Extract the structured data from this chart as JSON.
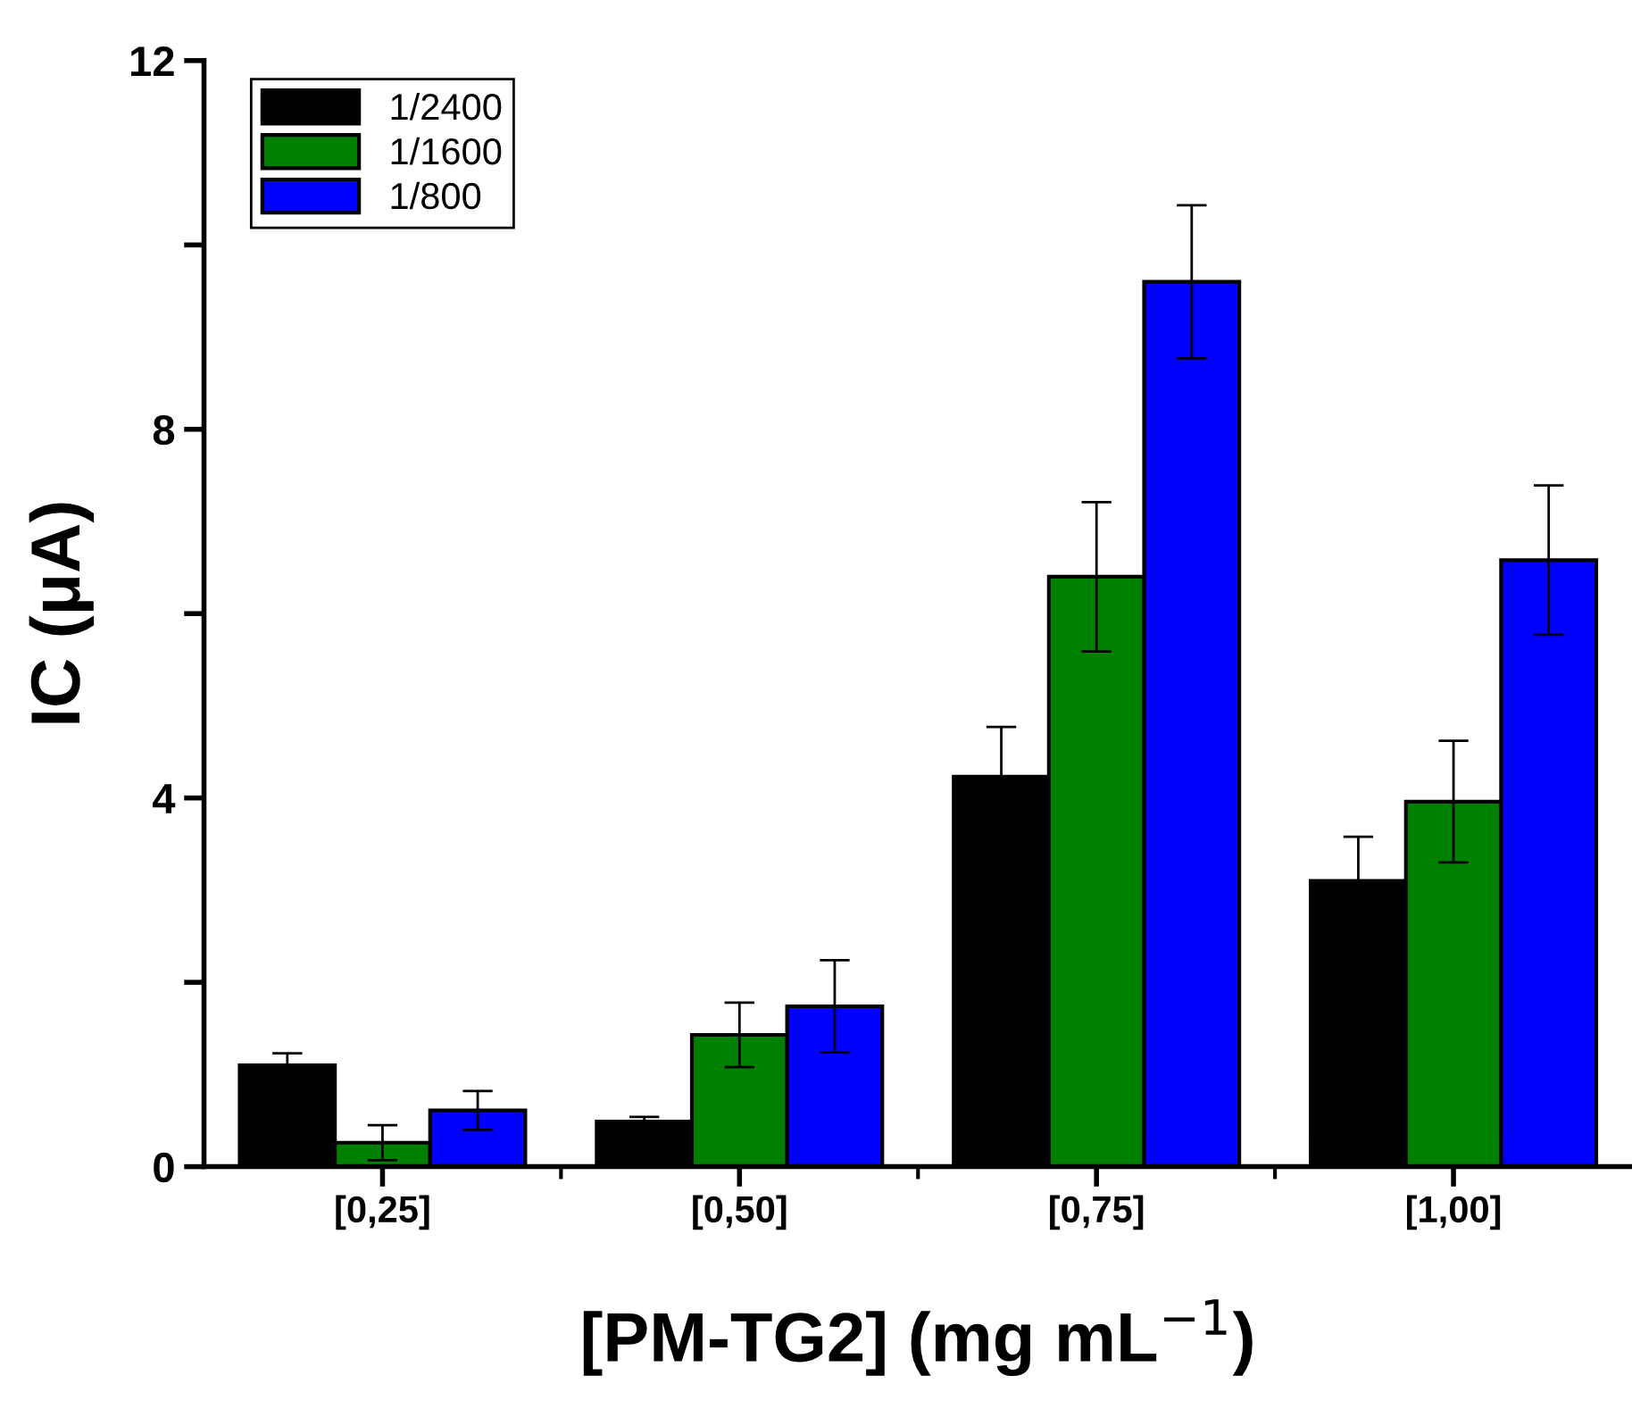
{
  "chart_data": {
    "type": "bar",
    "xlabel": "[PM-TG2] (mg mL$^{−1}$)",
    "ylabel": "IC (μA)",
    "categories": [
      "[0,25]",
      "[0,50]",
      "[0,75]",
      "[1,00]"
    ],
    "series": [
      {
        "name": "1/2400",
        "color": "#000000",
        "values": [
          1.1,
          0.49,
          4.23,
          3.1
        ],
        "errors": [
          0.13,
          0.05,
          0.54,
          0.48
        ]
      },
      {
        "name": "1/1600",
        "color": "#008000",
        "values": [
          0.26,
          1.43,
          6.4,
          3.96
        ],
        "errors": [
          0.19,
          0.35,
          0.81,
          0.66
        ]
      },
      {
        "name": "1/800",
        "color": "#0000ff",
        "values": [
          0.61,
          1.74,
          9.6,
          6.58
        ],
        "errors": [
          0.21,
          0.5,
          0.83,
          0.81
        ]
      }
    ],
    "ylim": [
      0,
      12
    ],
    "yticks": [
      0,
      {
        "value": 2,
        "label": null
      },
      4,
      {
        "value": 6,
        "label": null
      },
      8,
      {
        "value": 10,
        "label": null
      },
      12
    ],
    "grid": false,
    "legend": "top left"
  }
}
